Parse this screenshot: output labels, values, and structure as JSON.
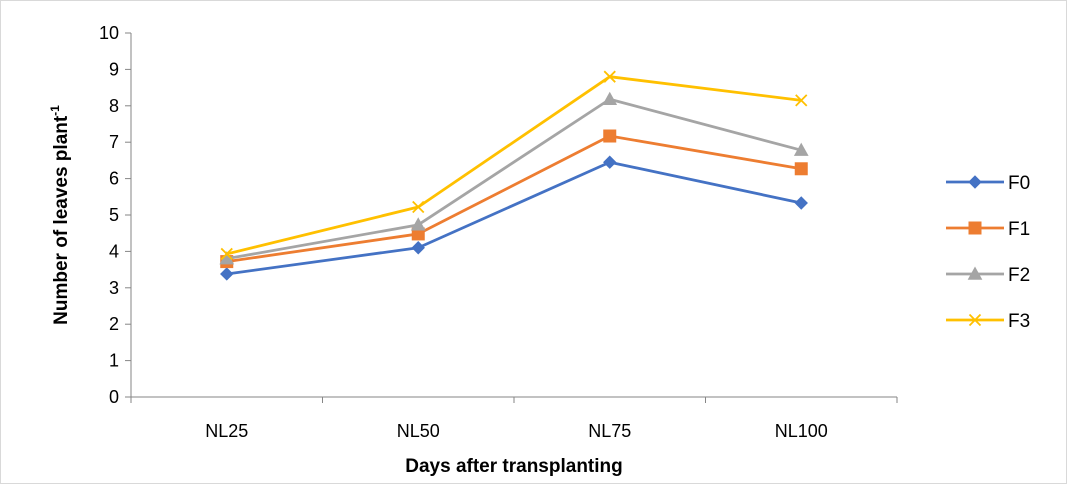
{
  "chart_data": {
    "type": "line",
    "categories": [
      "NL25",
      "NL50",
      "NL75",
      "NL100"
    ],
    "xlabel": "Days after transplanting",
    "ylabel": "Number of leaves plant",
    "ylabel_superscript": "-1",
    "ylim": [
      0,
      10
    ],
    "yticks": [
      "0",
      "1",
      "2",
      "3",
      "4",
      "5",
      "6",
      "7",
      "8",
      "9",
      "10"
    ],
    "grid": false,
    "legend_position": "right",
    "series": [
      {
        "name": "F0",
        "values": [
          3.38,
          4.1,
          6.45,
          5.33
        ],
        "color": "#4472C4",
        "marker": "diamond"
      },
      {
        "name": "F1",
        "values": [
          3.72,
          4.48,
          7.17,
          6.27
        ],
        "color": "#ED7D31",
        "marker": "square"
      },
      {
        "name": "F2",
        "values": [
          3.8,
          4.73,
          8.18,
          6.78
        ],
        "color": "#A5A5A5",
        "marker": "triangle"
      },
      {
        "name": "F3",
        "values": [
          3.93,
          5.22,
          8.8,
          8.15
        ],
        "color": "#FFC000",
        "marker": "x"
      }
    ]
  }
}
